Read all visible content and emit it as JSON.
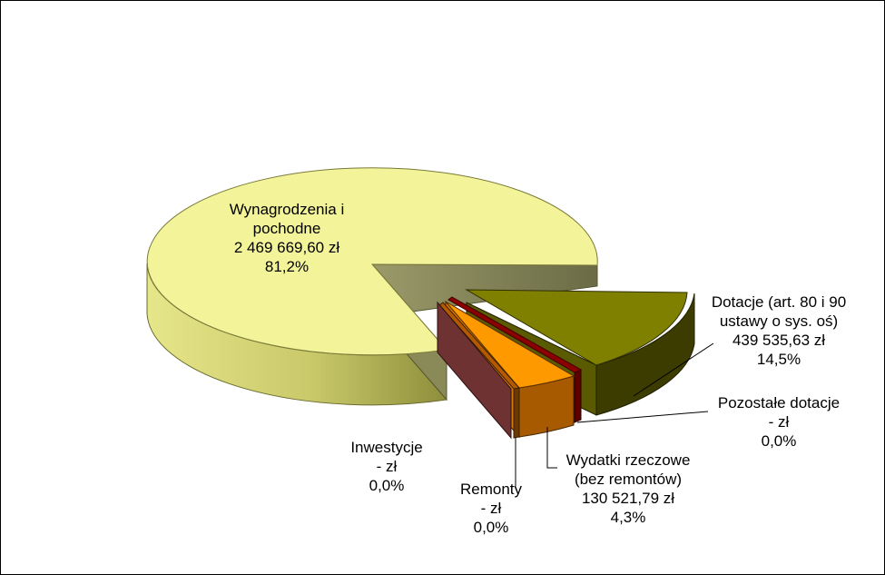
{
  "chart_data": {
    "type": "pie",
    "title": "",
    "slices": [
      {
        "name": "Wynagrodzenia i pochodne",
        "value_text": "2 469 669,60 zł",
        "value": 2469669.6,
        "percent": "81,2%",
        "label_lines": [
          "Wynagrodzenia i",
          "pochodne",
          "2 469 669,60 zł",
          "81,2%"
        ],
        "color": "#f3f39a"
      },
      {
        "name": "Dotacje (art. 80 i 90 ustawy o sys. oś)",
        "value_text": "439 535,63 zł",
        "value": 439535.63,
        "percent": "14,5%",
        "label_lines": [
          "Dotacje (art. 80 i 90",
          "ustawy o sys. oś)",
          "439 535,63 zł",
          "14,5%"
        ],
        "color": "#7f7f00"
      },
      {
        "name": "Pozostałe dotacje",
        "value_text": "-   zł",
        "value": 0,
        "percent": "0,0%",
        "label_lines": [
          "Pozostałe dotacje",
          "-   zł",
          "0,0%"
        ],
        "color": "#8b0000"
      },
      {
        "name": "Wydatki rzeczowe (bez remontów)",
        "value_text": "130 521,79 zł",
        "value": 130521.79,
        "percent": "4,3%",
        "label_lines": [
          "Wydatki rzeczowe",
          "(bez remontów)",
          "130 521,79 zł",
          "4,3%"
        ],
        "color": "#ff9900"
      },
      {
        "name": "Remonty",
        "value_text": "-   zł",
        "value": 0,
        "percent": "0,0%",
        "label_lines": [
          "Remonty",
          "-   zł",
          "0,0%"
        ],
        "color": "#b35a00"
      },
      {
        "name": "Inwestycje",
        "value_text": "-   zł",
        "value": 0,
        "percent": "0,0%",
        "label_lines": [
          "Inwestycje",
          "-   zł",
          "0,0%"
        ],
        "color": "#7a3333"
      }
    ]
  }
}
